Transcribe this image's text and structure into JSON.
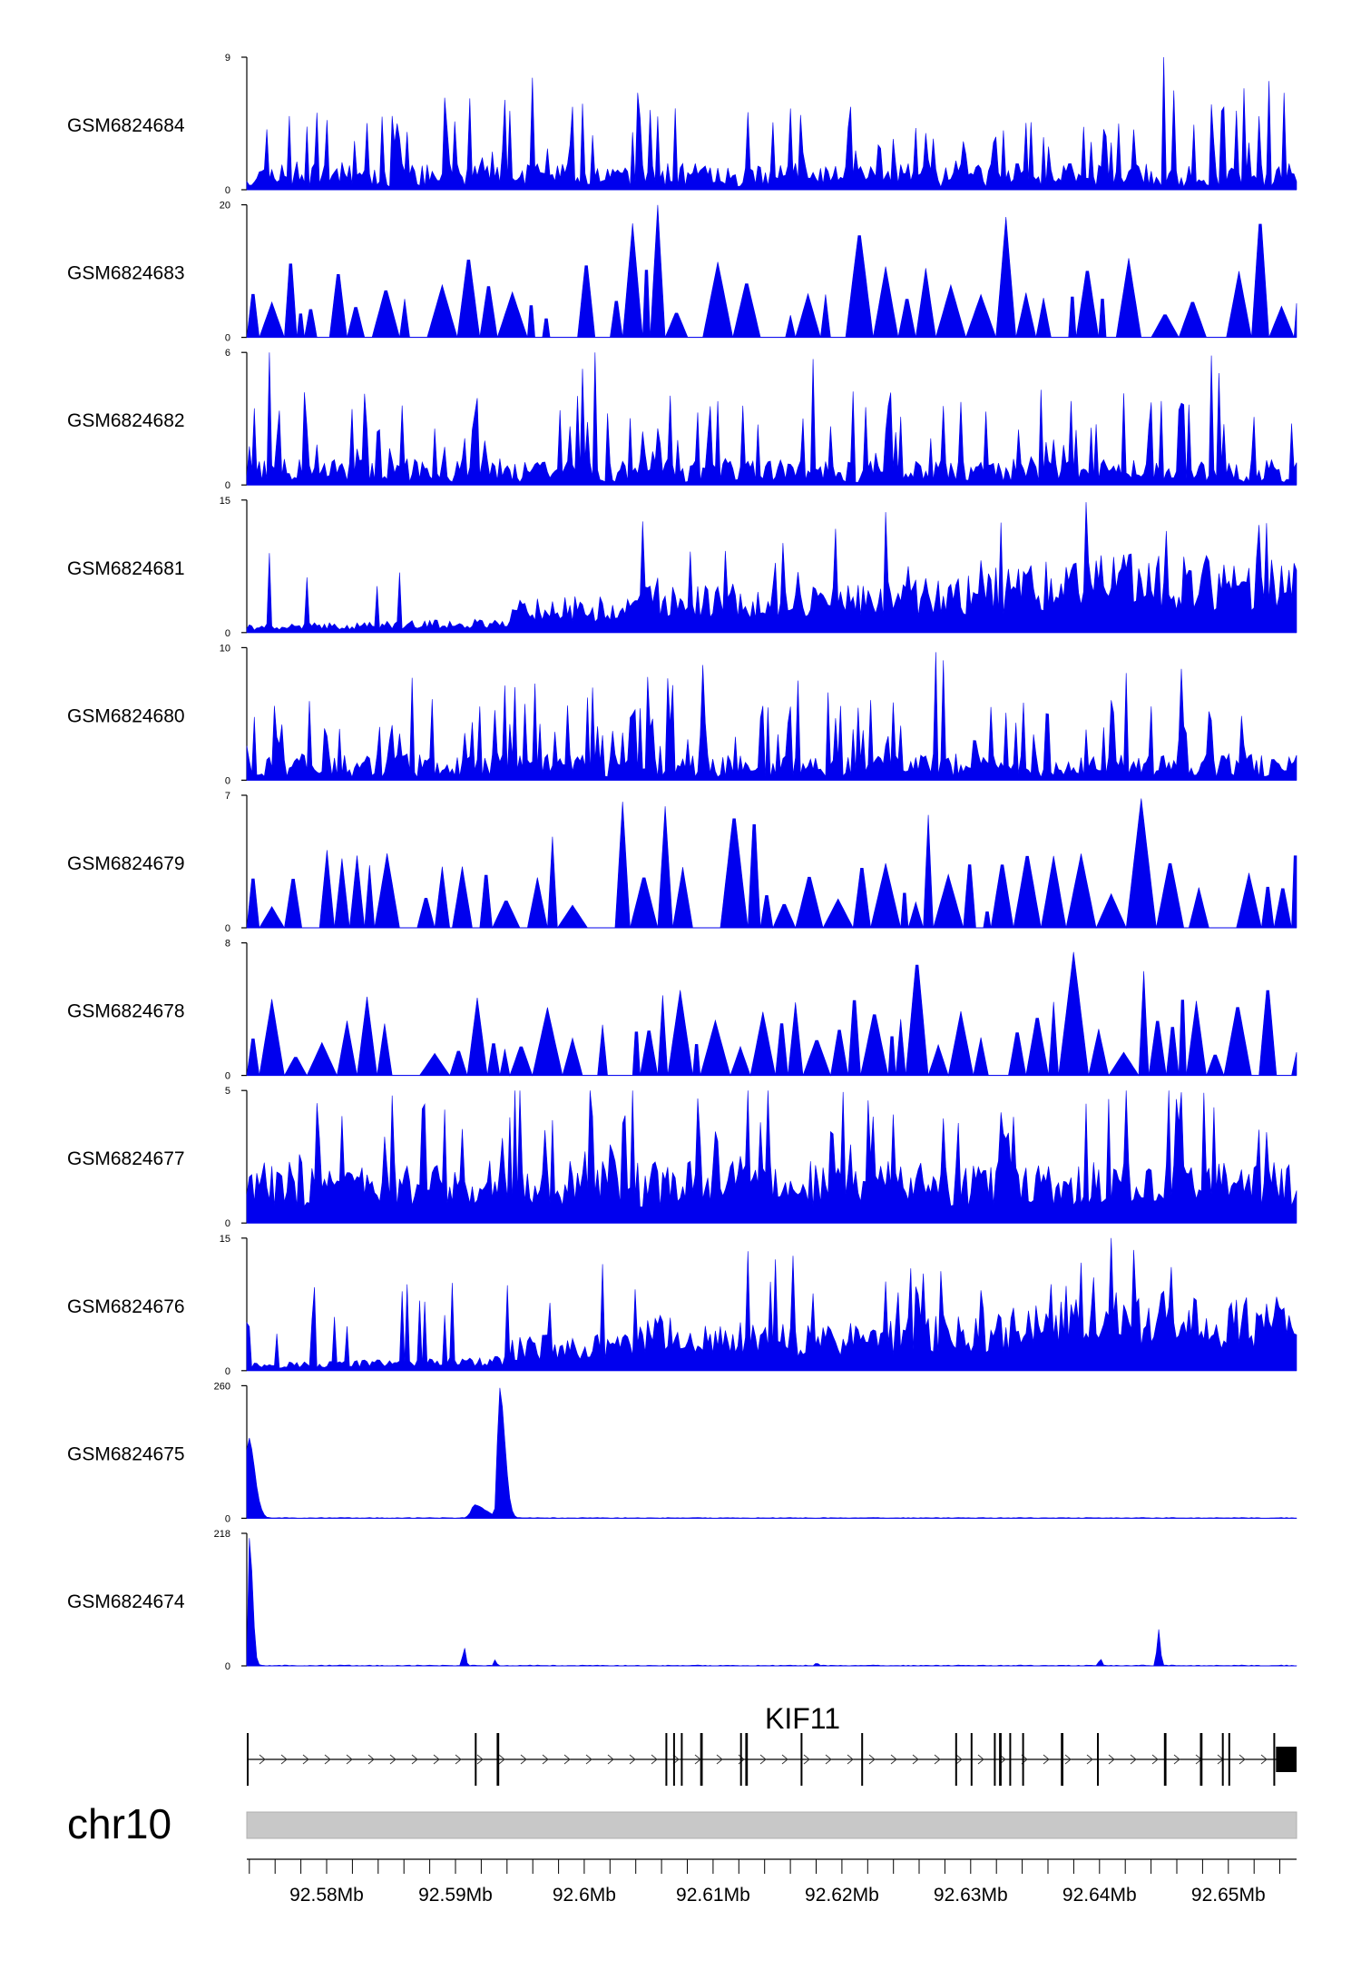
{
  "chart_data": {
    "type": "area",
    "chromosome": "chr10",
    "x_range_mb": [
      92.5738,
      92.6553
    ],
    "x_ticks": [
      {
        "value": 92.58,
        "label": "92.58Mb"
      },
      {
        "value": 92.59,
        "label": "92.59Mb"
      },
      {
        "value": 92.6,
        "label": "92.6Mb"
      },
      {
        "value": 92.61,
        "label": "92.61Mb"
      },
      {
        "value": 92.62,
        "label": "92.62Mb"
      },
      {
        "value": 92.63,
        "label": "92.63Mb"
      },
      {
        "value": 92.64,
        "label": "92.64Mb"
      },
      {
        "value": 92.65,
        "label": "92.65Mb"
      }
    ],
    "fill_color": "#0000ee",
    "tracks": [
      {
        "name": "GSM6824684",
        "ymax": 9,
        "ymin": 0,
        "ymax_label": "9",
        "ymin_label": "0",
        "profile": "sparse_peaks",
        "seed": 11
      },
      {
        "name": "GSM6824683",
        "ymax": 20,
        "ymin": 0,
        "ymax_label": "20",
        "ymin_label": "0",
        "profile": "triangles",
        "seed": 23
      },
      {
        "name": "GSM6824682",
        "ymax": 6,
        "ymin": 0,
        "ymax_label": "6",
        "ymin_label": "0",
        "profile": "sparse_peaks",
        "seed": 37
      },
      {
        "name": "GSM6824681",
        "ymax": 15,
        "ymin": 0,
        "ymax_label": "15",
        "ymin_label": "0",
        "profile": "ramp",
        "seed": 41
      },
      {
        "name": "GSM6824680",
        "ymax": 10,
        "ymin": 0,
        "ymax_label": "10",
        "ymin_label": "0",
        "profile": "sparse_peaks",
        "seed": 53
      },
      {
        "name": "GSM6824679",
        "ymax": 7,
        "ymin": 0,
        "ymax_label": "7",
        "ymin_label": "0",
        "profile": "triangles",
        "seed": 67
      },
      {
        "name": "GSM6824678",
        "ymax": 8,
        "ymin": 0,
        "ymax_label": "8",
        "ymin_label": "0",
        "profile": "triangles",
        "seed": 71
      },
      {
        "name": "GSM6824677",
        "ymax": 5,
        "ymin": 0,
        "ymax_label": "5",
        "ymin_label": "0",
        "profile": "dense",
        "seed": 83
      },
      {
        "name": "GSM6824676",
        "ymax": 15,
        "ymin": 0,
        "ymax_label": "15",
        "ymin_label": "0",
        "profile": "ramp",
        "seed": 97
      },
      {
        "name": "GSM6824675",
        "ymax": 260,
        "ymin": 0,
        "ymax_label": "260",
        "ymin_label": "0",
        "profile": "peaks",
        "peaks": [
          {
            "x": 92.5739,
            "height": 160,
            "width": 0.0007
          },
          {
            "x": 92.5934,
            "height": 255,
            "width": 0.0006
          },
          {
            "x": 92.5915,
            "height": 25,
            "width": 0.0012
          }
        ]
      },
      {
        "name": "GSM6824674",
        "ymax": 218,
        "ymin": 0,
        "ymax_label": "218",
        "ymin_label": "0",
        "profile": "peaks",
        "peaks": [
          {
            "x": 92.574,
            "height": 210,
            "width": 0.00035
          },
          {
            "x": 92.5906,
            "height": 42,
            "width": 0.0002
          },
          {
            "x": 92.593,
            "height": 10,
            "width": 0.0002
          },
          {
            "x": 92.618,
            "height": 6,
            "width": 0.0002
          },
          {
            "x": 92.64,
            "height": 15,
            "width": 0.0002
          },
          {
            "x": 92.6445,
            "height": 70,
            "width": 0.00025
          }
        ]
      }
    ],
    "gene": {
      "name": "KIF11",
      "strand": "+",
      "start": 92.5738,
      "end": 92.6553,
      "exons": [
        {
          "x": 92.5738,
          "w": 8e-05
        },
        {
          "x": 92.5915,
          "w": 8e-05
        },
        {
          "x": 92.5932,
          "w": 0.0002
        },
        {
          "x": 92.6063,
          "w": 8e-05
        },
        {
          "x": 92.6069,
          "w": 8e-05
        },
        {
          "x": 92.6075,
          "w": 8e-05
        },
        {
          "x": 92.609,
          "w": 0.0002
        },
        {
          "x": 92.6121,
          "w": 8e-05
        },
        {
          "x": 92.6125,
          "w": 0.0002
        },
        {
          "x": 92.6168,
          "w": 8e-05
        },
        {
          "x": 92.6215,
          "w": 8e-05
        },
        {
          "x": 92.6288,
          "w": 8e-05
        },
        {
          "x": 92.63,
          "w": 8e-05
        },
        {
          "x": 92.6318,
          "w": 8e-05
        },
        {
          "x": 92.6322,
          "w": 0.0002
        },
        {
          "x": 92.633,
          "w": 8e-05
        },
        {
          "x": 92.634,
          "w": 8e-05
        },
        {
          "x": 92.637,
          "w": 0.0002
        },
        {
          "x": 92.6398,
          "w": 8e-05
        },
        {
          "x": 92.645,
          "w": 0.0002
        },
        {
          "x": 92.6478,
          "w": 0.0002
        },
        {
          "x": 92.6495,
          "w": 8e-05
        },
        {
          "x": 92.65,
          "w": 8e-05
        },
        {
          "x": 92.6535,
          "w": 8e-05
        },
        {
          "x": 92.6537,
          "w": 0.0016
        }
      ]
    }
  }
}
